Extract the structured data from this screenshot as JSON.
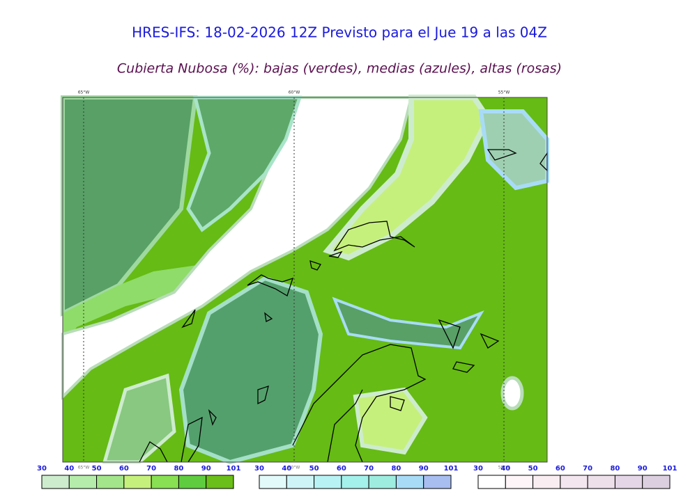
{
  "header": {
    "title": "HRES-IFS: 18-02-2026 12Z Previsto para el Jue 19 a las 04Z",
    "subtitle": "Cubierta Nubosa (%): bajas (verdes), medias (azules), altas (rosas)"
  },
  "map": {
    "lon_labels": [
      "65°W",
      "60°W",
      "55°W"
    ]
  },
  "legends": [
    {
      "labels": [
        30,
        40,
        50,
        60,
        70,
        80,
        90,
        101
      ],
      "colors": [
        "#cdeccd",
        "#b5ecac",
        "#a3e58a",
        "#c6f07c",
        "#88e052",
        "#5ecc3e",
        "#6abf18"
      ]
    },
    {
      "labels": [
        30,
        40,
        50,
        60,
        70,
        80,
        90,
        101
      ],
      "colors": [
        "#e2fafa",
        "#cef4f8",
        "#b8f2f4",
        "#a4f0ea",
        "#9eece0",
        "#a8dcf6",
        "#a8bdf0"
      ]
    },
    {
      "labels": [
        30,
        40,
        50,
        60,
        70,
        80,
        90,
        101
      ],
      "colors": [
        "#ffffff",
        "#fdf5f7",
        "#f9edf1",
        "#f4e6ee",
        "#ede0ea",
        "#e4d6e6",
        "#dcd0e0"
      ]
    }
  ]
}
